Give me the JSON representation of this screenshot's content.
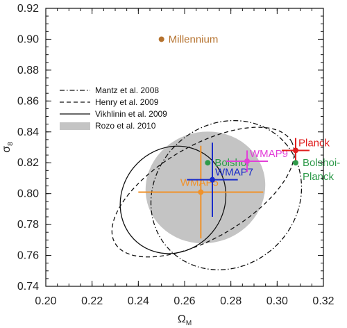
{
  "chart_data": {
    "type": "scatter",
    "xlabel": "Ω",
    "xlabel_sub": "M",
    "ylabel": "σ",
    "ylabel_sub": "8",
    "xlim": [
      0.2,
      0.32
    ],
    "ylim": [
      0.74,
      0.92
    ],
    "xticks": [
      "0.20",
      "0.22",
      "0.24",
      "0.26",
      "0.28",
      "0.30",
      "0.32"
    ],
    "yticks": [
      "0.74",
      "0.76",
      "0.78",
      "0.80",
      "0.82",
      "0.84",
      "0.86",
      "0.88",
      "0.90",
      "0.92"
    ],
    "legend_position": "upper-left",
    "legend": [
      {
        "label": "Mantz et al. 2008",
        "style": "dash-dot"
      },
      {
        "label": "Henry et al. 2009",
        "style": "dashed"
      },
      {
        "label": "Vikhlinin et al. 2009",
        "style": "solid"
      },
      {
        "label": "Rozo et al. 2010",
        "style": "filled-gray"
      }
    ],
    "contours": [
      {
        "name": "Rozo et al. 2010",
        "style": "filled-gray",
        "cx": 0.269,
        "cy": 0.804,
        "rx": 0.026,
        "ry": 0.036,
        "angle_deg": 15
      },
      {
        "name": "Mantz et al. 2008",
        "style": "dash-dot",
        "cx": 0.278,
        "cy": 0.799,
        "rx": 0.034,
        "ry": 0.046,
        "angle_deg": 42
      },
      {
        "name": "Henry et al. 2009",
        "style": "dashed",
        "cx": 0.268,
        "cy": 0.801,
        "rx": 0.044,
        "ry": 0.03,
        "angle_deg": 30
      },
      {
        "name": "Vikhlinin et al. 2009",
        "style": "solid",
        "cx": 0.255,
        "cy": 0.796,
        "rx": 0.024,
        "ry": 0.033,
        "angle_deg": 50
      }
    ],
    "points": [
      {
        "label": "Millennium",
        "x": 0.25,
        "y": 0.9,
        "xerr": 0,
        "yerr": 0,
        "color": "#b5722e",
        "label_side": "right"
      },
      {
        "label": "Bolshoi",
        "x": 0.27,
        "y": 0.82,
        "xerr": 0,
        "yerr": 0,
        "color": "#2e9a4a",
        "label_side": "right"
      },
      {
        "label": "WMAP5",
        "x": 0.267,
        "y": 0.801,
        "xerr": 0.027,
        "yerr": 0.03,
        "color": "#f0922a",
        "label_side": "above-left"
      },
      {
        "label": "WMAP7",
        "x": 0.272,
        "y": 0.809,
        "xerr": 0.011,
        "yerr": 0.024,
        "color": "#1a2cc9",
        "label_side": "above-right"
      },
      {
        "label": "WMAP9",
        "x": 0.287,
        "y": 0.821,
        "xerr": 0.009,
        "yerr": 0.007,
        "color": "#e23fd8",
        "label_side": "above-right"
      },
      {
        "label": "Planck",
        "x": 0.308,
        "y": 0.828,
        "xerr": 0.006,
        "yerr": 0.008,
        "color": "#e01e1e",
        "label_side": "above-right"
      },
      {
        "label": "Bolshoi-\nPlanck",
        "x": 0.308,
        "y": 0.82,
        "xerr": 0,
        "yerr": 0,
        "color": "#2e9a4a",
        "label_side": "right"
      }
    ]
  }
}
